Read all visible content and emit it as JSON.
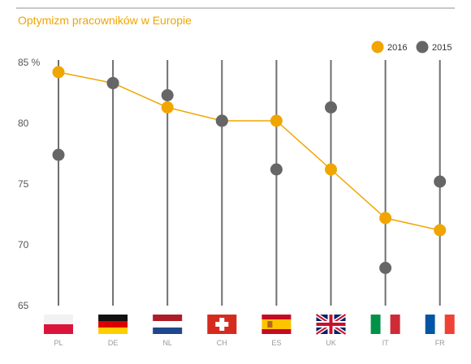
{
  "chart_data": {
    "type": "scatter",
    "title": "Optymizm pracowników w Europie",
    "categories": [
      "PL",
      "DE",
      "NL",
      "CH",
      "ES",
      "UK",
      "IT",
      "FR"
    ],
    "series": [
      {
        "name": "2016",
        "color": "#f0a500",
        "values": [
          84.2,
          83.3,
          81.3,
          80.2,
          80.2,
          76.2,
          72.2,
          71.2
        ],
        "connected": true
      },
      {
        "name": "2015",
        "color": "#666666",
        "values": [
          77.4,
          83.3,
          82.3,
          80.2,
          76.2,
          81.3,
          68.1,
          75.2
        ],
        "connected": false
      }
    ],
    "yticks": [
      {
        "value": 85,
        "label": "85 %"
      },
      {
        "value": 80,
        "label": "80"
      },
      {
        "value": 75,
        "label": "75"
      },
      {
        "value": 70,
        "label": "70"
      },
      {
        "value": 65,
        "label": "65"
      }
    ],
    "ylim": [
      65,
      87
    ],
    "legend_position": "top-right",
    "flags": [
      "flag-pl",
      "flag-de",
      "flag-nl",
      "flag-ch",
      "flag-es",
      "flag-uk",
      "flag-it",
      "flag-fr"
    ]
  }
}
